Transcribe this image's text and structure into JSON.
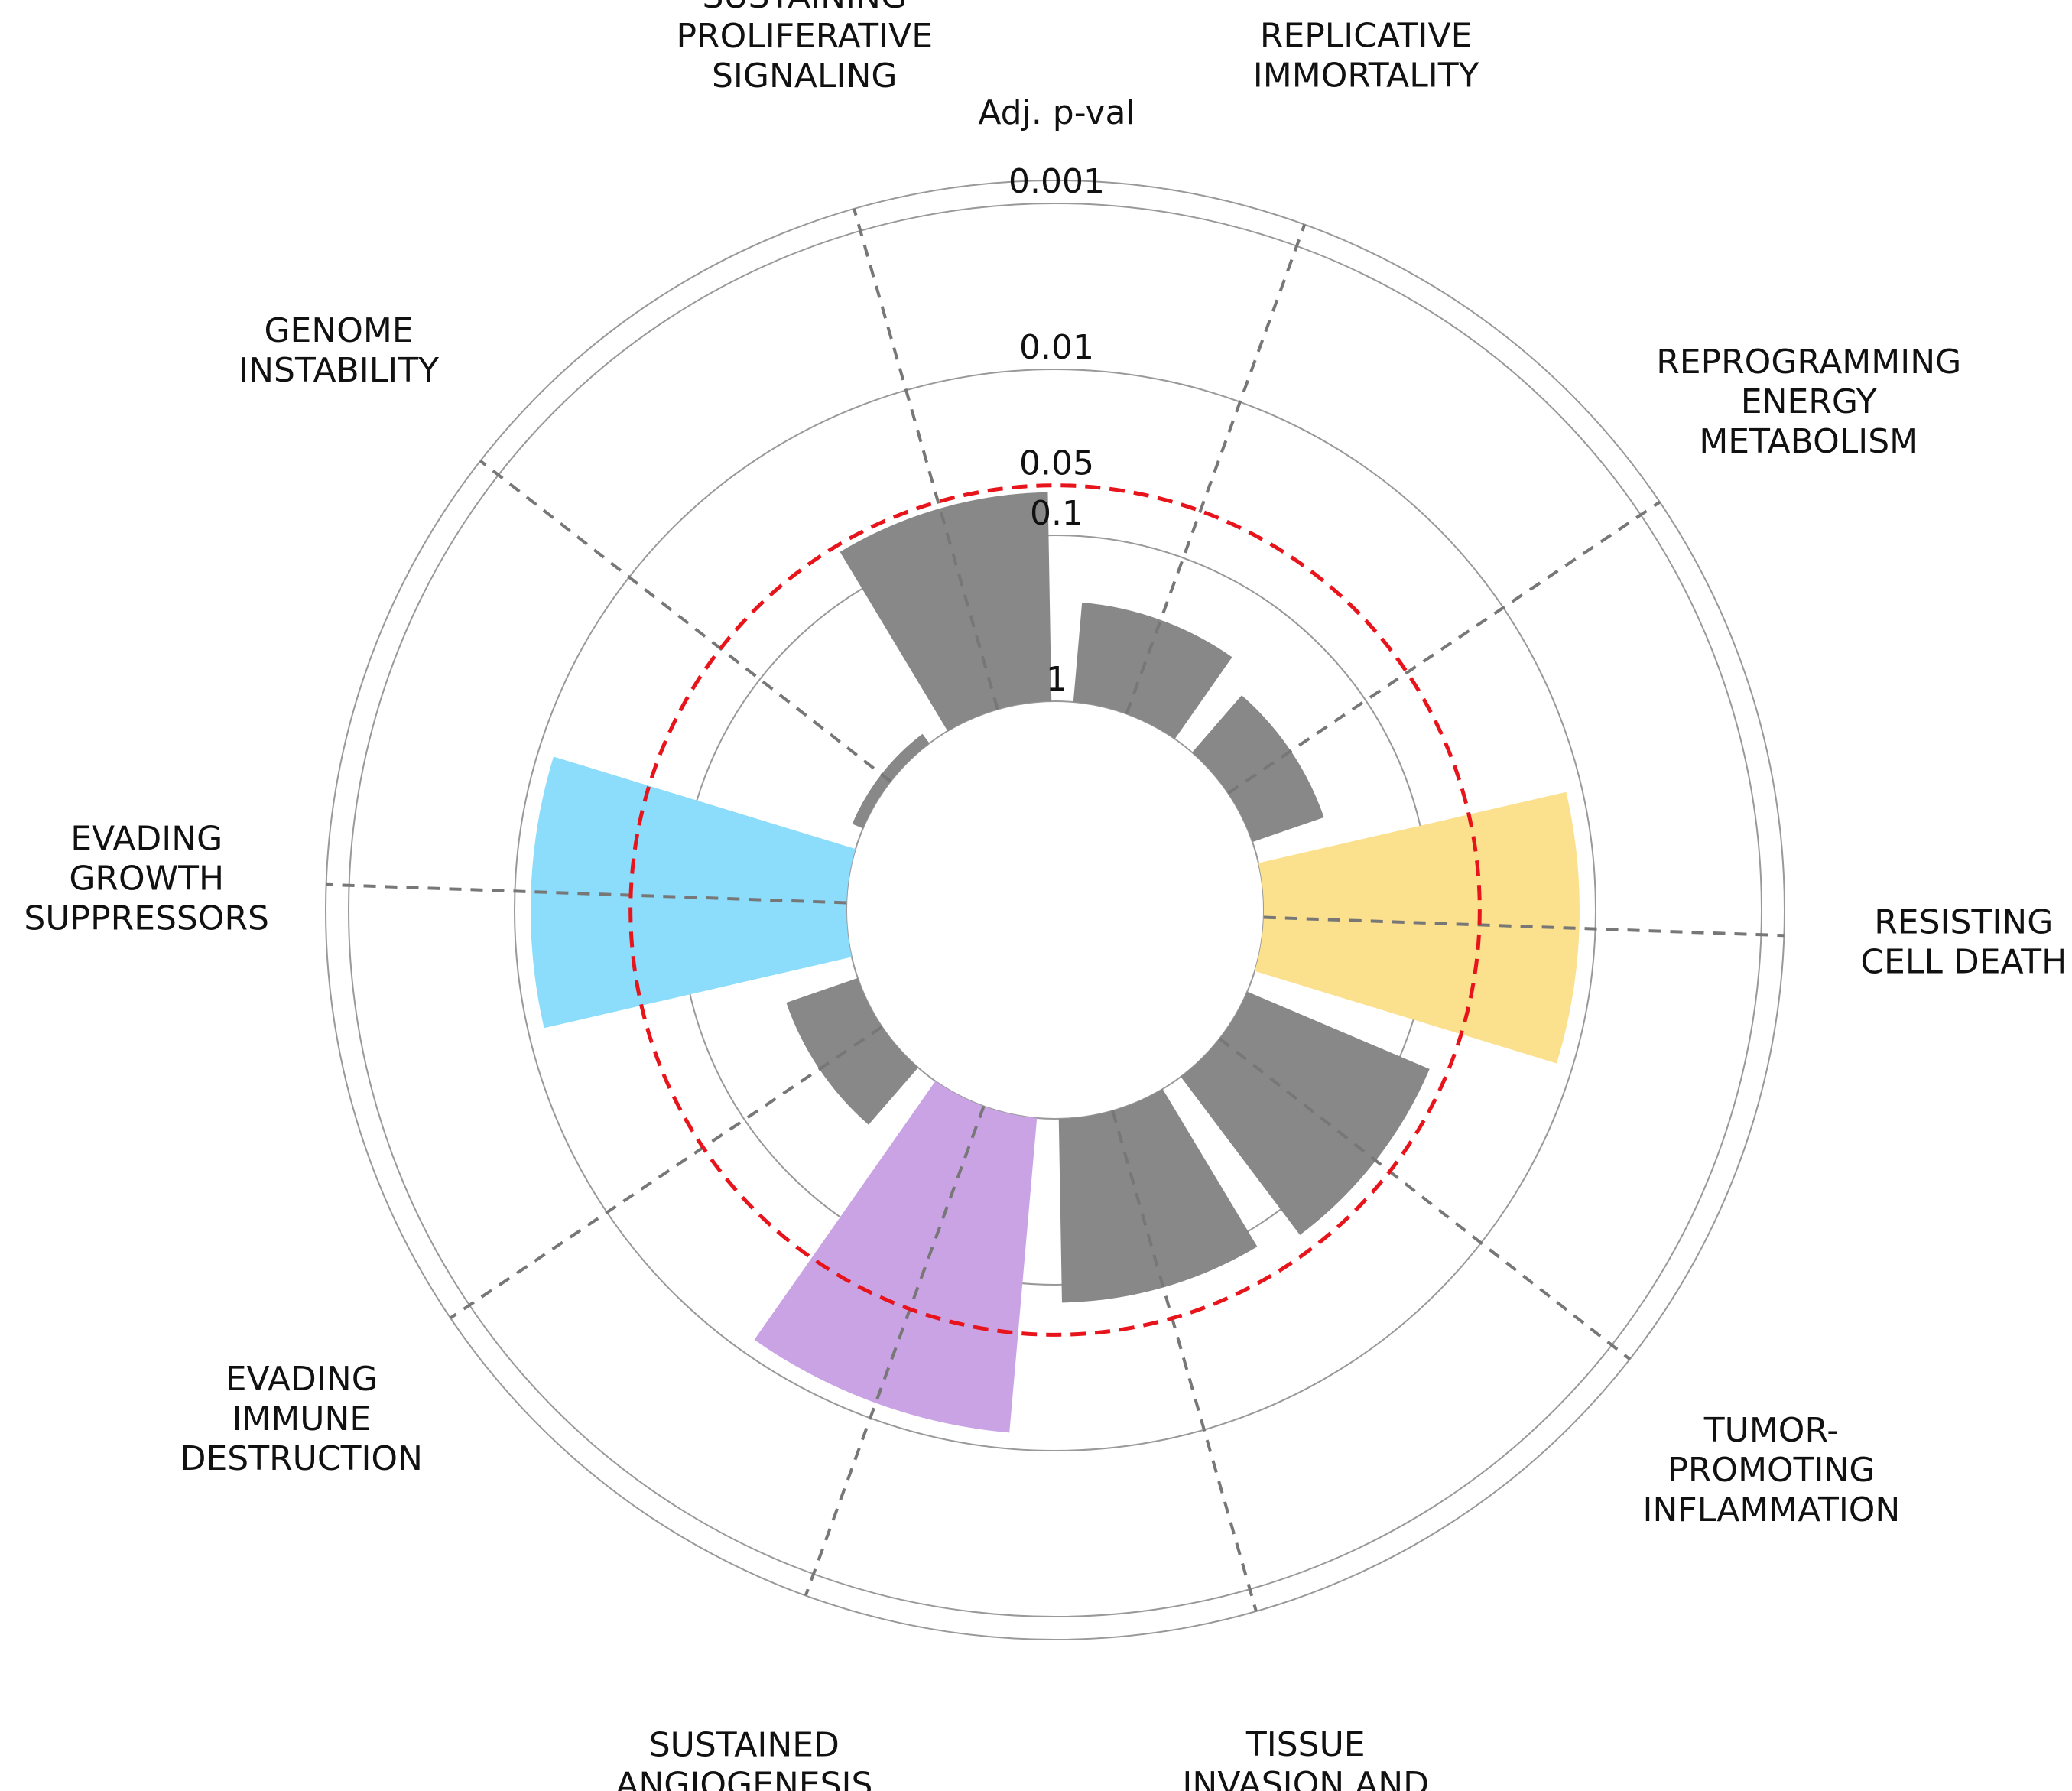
{
  "chart_data": {
    "type": "polar-bar",
    "radial_axis": {
      "title": "Adj. p-val",
      "ticks": [
        "1",
        "0.1",
        "0.05",
        "0.01",
        "0.001"
      ],
      "scale": "-log10(p)",
      "threshold": 0.05,
      "threshold_color": "#e8141c"
    },
    "categories": [
      "REPLICATIVE\nIMMORTALITY",
      "REPROGRAMMING\nENERGY\nMETABOLISM",
      "RESISTING\nCELL DEATH",
      "TUMOR-\nPROMOTING\nINFLAMMATION",
      "TISSUE\nINVASION AND\nMETASTASIS",
      "SUSTAINED\nANGIOGENESIS",
      "EVADING\nIMMUNE\nDESTRUCTION",
      "EVADING\nGROWTH\nSUPPRESSORS",
      "GENOME\nINSTABILITY",
      "SUSTAINING\nPROLIFERATIVE\nSIGNALING"
    ],
    "bars": [
      {
        "category": "REPLICATIVE\nIMMORTALITY",
        "adj_p": 0.25,
        "color": "#888888"
      },
      {
        "category": "REPROGRAMMING\nENERGY\nMETABOLISM",
        "adj_p": 0.35,
        "color": "#888888"
      },
      {
        "category": "RESISTING\nCELL DEATH",
        "adj_p": 0.0125,
        "color": "#fbe08e"
      },
      {
        "category": "TUMOR-\nPROMOTING\nINFLAMMATION",
        "adj_p": 0.064,
        "color": "#888888"
      },
      {
        "category": "TISSUE\nINVASION AND\nMETASTASIS",
        "adj_p": 0.078,
        "color": "#888888"
      },
      {
        "category": "SUSTAINED\nANGIOGENESIS",
        "adj_p": 0.0125,
        "color": "#caa3e5"
      },
      {
        "category": "EVADING\nIMMUNE\nDESTRUCTION",
        "adj_p": 0.35,
        "color": "#888888"
      },
      {
        "category": "EVADING\nGROWTH\nSUPPRESSORS",
        "adj_p": 0.0125,
        "color": "#8cdcfb"
      },
      {
        "category": "GENOME\nINSTABILITY",
        "adj_p": 0.85,
        "color": "#888888"
      },
      {
        "category": "SUSTAINING\nPROLIFERATIVE\nSIGNALING",
        "adj_p": 0.055,
        "color": "#888888"
      }
    ]
  }
}
